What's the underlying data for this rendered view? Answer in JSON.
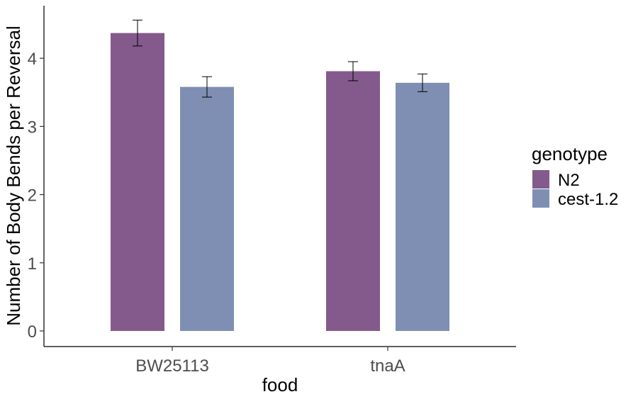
{
  "chart_data": {
    "type": "bar",
    "title": "",
    "xlabel": "food",
    "ylabel": "Number of Body Bends per Reversal",
    "categories": [
      "BW25113",
      "tnaA"
    ],
    "ylim": [
      0,
      4.7
    ],
    "yticks": [
      0,
      1,
      2,
      3,
      4
    ],
    "grid": false,
    "legend": {
      "title": "genotype",
      "position": "right"
    },
    "series": [
      {
        "name": "N2",
        "color": "#845A8C",
        "values": [
          4.37,
          3.81
        ],
        "error": [
          0.19,
          0.14
        ]
      },
      {
        "name": "cest-1.2",
        "color": "#7F8FB3",
        "values": [
          3.58,
          3.64
        ],
        "error": [
          0.15,
          0.13
        ]
      }
    ]
  }
}
